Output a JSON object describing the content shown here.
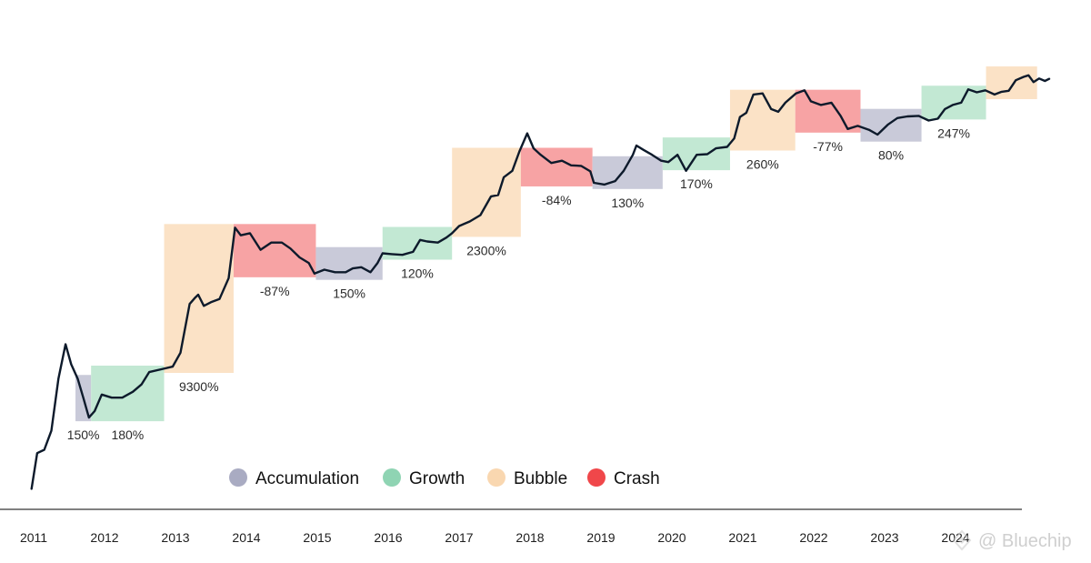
{
  "chart_data": {
    "type": "line",
    "title": "",
    "xlabel": "",
    "ylabel": "",
    "y_scale": "log",
    "grid": false,
    "legend_position": "bottom-center",
    "x_ticks": [
      "2011",
      "2012",
      "2013",
      "2014",
      "2015",
      "2016",
      "2017",
      "2018",
      "2019",
      "2020",
      "2021",
      "2022",
      "2023",
      "2024"
    ],
    "legend": [
      {
        "key": "accumulation",
        "label": "Accumulation",
        "color": "#a9abc2"
      },
      {
        "key": "growth",
        "label": "Growth",
        "color": "#8fd4b3"
      },
      {
        "key": "bubble",
        "label": "Bubble",
        "color": "#f9d7b0"
      },
      {
        "key": "crash",
        "label": "Crash",
        "color": "#f0474a"
      }
    ],
    "phases": [
      {
        "type": "accumulation",
        "start": 2011.59,
        "end": 2011.81,
        "change": "150%"
      },
      {
        "type": "growth",
        "start": 2011.81,
        "end": 2012.84,
        "change": "180%"
      },
      {
        "type": "bubble",
        "start": 2012.84,
        "end": 2013.82,
        "change": "9300%"
      },
      {
        "type": "crash",
        "start": 2013.82,
        "end": 2014.98,
        "change": "-87%"
      },
      {
        "type": "accumulation",
        "start": 2014.98,
        "end": 2015.92,
        "change": "150%"
      },
      {
        "type": "growth",
        "start": 2015.92,
        "end": 2016.9,
        "change": "120%"
      },
      {
        "type": "bubble",
        "start": 2016.9,
        "end": 2017.87,
        "change": "2300%"
      },
      {
        "type": "crash",
        "start": 2017.87,
        "end": 2018.88,
        "change": "-84%"
      },
      {
        "type": "accumulation",
        "start": 2018.88,
        "end": 2019.87,
        "change": "130%"
      },
      {
        "type": "growth",
        "start": 2019.87,
        "end": 2020.82,
        "change": "170%"
      },
      {
        "type": "bubble",
        "start": 2020.82,
        "end": 2021.74,
        "change": "260%"
      },
      {
        "type": "crash",
        "start": 2021.74,
        "end": 2022.66,
        "change": "-77%"
      },
      {
        "type": "accumulation",
        "start": 2022.66,
        "end": 2023.52,
        "change": "80%"
      },
      {
        "type": "growth",
        "start": 2023.52,
        "end": 2024.43,
        "change": "247%"
      },
      {
        "type": "bubble",
        "start": 2024.43,
        "end": 2025.15,
        "change": ""
      }
    ],
    "series": [
      {
        "values": [
          [
            2010.97,
            0.3
          ],
          [
            2011.05,
            0.9
          ],
          [
            2011.15,
            1.0
          ],
          [
            2011.25,
            1.8
          ],
          [
            2011.35,
            9
          ],
          [
            2011.45,
            26
          ],
          [
            2011.53,
            14
          ],
          [
            2011.62,
            9
          ],
          [
            2011.7,
            5
          ],
          [
            2011.78,
            2.7
          ],
          [
            2011.86,
            3.3
          ],
          [
            2011.96,
            5.5
          ],
          [
            2012.1,
            5.0
          ],
          [
            2012.25,
            5.0
          ],
          [
            2012.4,
            6.0
          ],
          [
            2012.52,
            7.5
          ],
          [
            2012.63,
            11
          ],
          [
            2012.8,
            12
          ],
          [
            2012.96,
            13
          ],
          [
            2013.07,
            20
          ],
          [
            2013.2,
            90
          ],
          [
            2013.28,
            110
          ],
          [
            2013.32,
            120
          ],
          [
            2013.4,
            85
          ],
          [
            2013.5,
            95
          ],
          [
            2013.62,
            105
          ],
          [
            2013.75,
            200
          ],
          [
            2013.84,
            950
          ],
          [
            2013.92,
            750
          ],
          [
            2014.05,
            800
          ],
          [
            2014.2,
            480
          ],
          [
            2014.35,
            600
          ],
          [
            2014.5,
            600
          ],
          [
            2014.62,
            500
          ],
          [
            2014.75,
            380
          ],
          [
            2014.88,
            320
          ],
          [
            2014.96,
            230
          ],
          [
            2015.1,
            260
          ],
          [
            2015.25,
            240
          ],
          [
            2015.4,
            240
          ],
          [
            2015.5,
            270
          ],
          [
            2015.62,
            280
          ],
          [
            2015.75,
            240
          ],
          [
            2015.85,
            320
          ],
          [
            2015.92,
            430
          ],
          [
            2016.05,
            420
          ],
          [
            2016.2,
            410
          ],
          [
            2016.35,
            450
          ],
          [
            2016.45,
            650
          ],
          [
            2016.55,
            620
          ],
          [
            2016.7,
            600
          ],
          [
            2016.82,
            700
          ],
          [
            2016.9,
            800
          ],
          [
            2017.0,
            1000
          ],
          [
            2017.15,
            1150
          ],
          [
            2017.3,
            1400
          ],
          [
            2017.45,
            2500
          ],
          [
            2017.55,
            2600
          ],
          [
            2017.63,
            4500
          ],
          [
            2017.75,
            5500
          ],
          [
            2017.85,
            10000
          ],
          [
            2017.96,
            17500
          ],
          [
            2018.05,
            11000
          ],
          [
            2018.15,
            9000
          ],
          [
            2018.3,
            7000
          ],
          [
            2018.45,
            7500
          ],
          [
            2018.58,
            6500
          ],
          [
            2018.72,
            6400
          ],
          [
            2018.85,
            5400
          ],
          [
            2018.9,
            3800
          ],
          [
            2019.05,
            3600
          ],
          [
            2019.2,
            4000
          ],
          [
            2019.32,
            5500
          ],
          [
            2019.45,
            9000
          ],
          [
            2019.5,
            12000
          ],
          [
            2019.6,
            10500
          ],
          [
            2019.72,
            9000
          ],
          [
            2019.85,
            7500
          ],
          [
            2019.95,
            7200
          ],
          [
            2020.08,
            9000
          ],
          [
            2020.2,
            5500
          ],
          [
            2020.35,
            9000
          ],
          [
            2020.5,
            9200
          ],
          [
            2020.62,
            11000
          ],
          [
            2020.78,
            11500
          ],
          [
            2020.88,
            15000
          ],
          [
            2020.96,
            29000
          ],
          [
            2021.05,
            33000
          ],
          [
            2021.15,
            58000
          ],
          [
            2021.28,
            60000
          ],
          [
            2021.4,
            37000
          ],
          [
            2021.5,
            34000
          ],
          [
            2021.6,
            45000
          ],
          [
            2021.75,
            60000
          ],
          [
            2021.87,
            66000
          ],
          [
            2021.96,
            47000
          ],
          [
            2022.1,
            42000
          ],
          [
            2022.25,
            45000
          ],
          [
            2022.38,
            30000
          ],
          [
            2022.48,
            20000
          ],
          [
            2022.62,
            22000
          ],
          [
            2022.78,
            19500
          ],
          [
            2022.9,
            16800
          ],
          [
            2023.05,
            23000
          ],
          [
            2023.18,
            28000
          ],
          [
            2023.32,
            29500
          ],
          [
            2023.48,
            30000
          ],
          [
            2023.62,
            26000
          ],
          [
            2023.75,
            27500
          ],
          [
            2023.85,
            37000
          ],
          [
            2023.96,
            42000
          ],
          [
            2024.08,
            45000
          ],
          [
            2024.18,
            68000
          ],
          [
            2024.3,
            62000
          ],
          [
            2024.42,
            66000
          ],
          [
            2024.55,
            58000
          ],
          [
            2024.65,
            63000
          ],
          [
            2024.75,
            65000
          ],
          [
            2024.85,
            90000
          ],
          [
            2024.96,
            100000
          ],
          [
            2025.03,
            105000
          ],
          [
            2025.1,
            85000
          ],
          [
            2025.18,
            95000
          ],
          [
            2025.26,
            88000
          ],
          [
            2025.32,
            94000
          ]
        ]
      }
    ]
  },
  "watermark": {
    "text": "@ Bluechip"
  }
}
